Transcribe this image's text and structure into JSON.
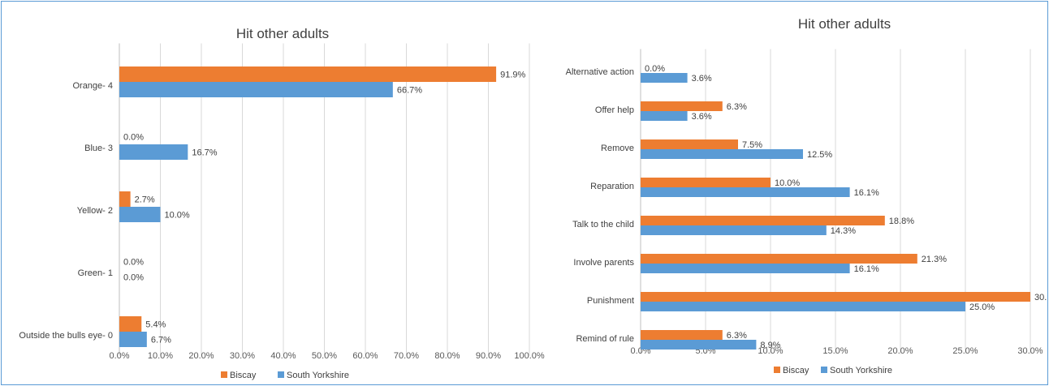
{
  "chart_data": [
    {
      "type": "bar",
      "orientation": "horizontal",
      "title": "Hit other adults",
      "categories": [
        "Orange- 4",
        "Blue- 3",
        "Yellow- 2",
        "Green- 1",
        "Outside the bulls eye- 0"
      ],
      "series": [
        {
          "name": "Biscay",
          "color": "#ed7d31",
          "values": [
            91.9,
            0.0,
            2.7,
            0.0,
            5.4
          ],
          "labels": [
            "91.9%",
            "0.0%",
            "2.7%",
            "0.0%",
            "5.4%"
          ]
        },
        {
          "name": "South Yorkshire",
          "color": "#5b9bd5",
          "values": [
            66.7,
            16.7,
            10.0,
            0.0,
            6.7
          ],
          "labels": [
            "66.7%",
            "16.7%",
            "10.0%",
            "0.0%",
            "6.7%"
          ]
        }
      ],
      "xlim": [
        0,
        100
      ],
      "xticks": [
        "0.0%",
        "10.0%",
        "20.0%",
        "30.0%",
        "40.0%",
        "50.0%",
        "60.0%",
        "70.0%",
        "80.0%",
        "90.0%",
        "100.0%"
      ],
      "grid": true,
      "legend": "bottom"
    },
    {
      "type": "bar",
      "orientation": "horizontal",
      "title": "Hit other adults",
      "categories": [
        "Alternative action",
        "Offer help",
        "Remove",
        "Reparation",
        "Talk to the child",
        "Involve parents",
        "Punishment",
        "Remind of rule"
      ],
      "series": [
        {
          "name": "Biscay",
          "color": "#ed7d31",
          "values": [
            0.0,
            6.3,
            7.5,
            10.0,
            18.8,
            21.3,
            30.0,
            6.3
          ],
          "labels": [
            "0.0%",
            "6.3%",
            "7.5%",
            "10.0%",
            "18.8%",
            "21.3%",
            "30.",
            "6.3%"
          ]
        },
        {
          "name": "South Yorkshire",
          "color": "#5b9bd5",
          "values": [
            3.6,
            3.6,
            12.5,
            16.1,
            14.3,
            16.1,
            25.0,
            8.9
          ],
          "labels": [
            "3.6%",
            "3.6%",
            "12.5%",
            "16.1%",
            "14.3%",
            "16.1%",
            "25.0%",
            "8.9%"
          ]
        }
      ],
      "xlim": [
        0,
        30
      ],
      "xticks": [
        "0.0%",
        "5.0%",
        "10.0%",
        "15.0%",
        "20.0%",
        "25.0%",
        "30.0%"
      ],
      "grid": true,
      "legend": "bottom"
    }
  ]
}
